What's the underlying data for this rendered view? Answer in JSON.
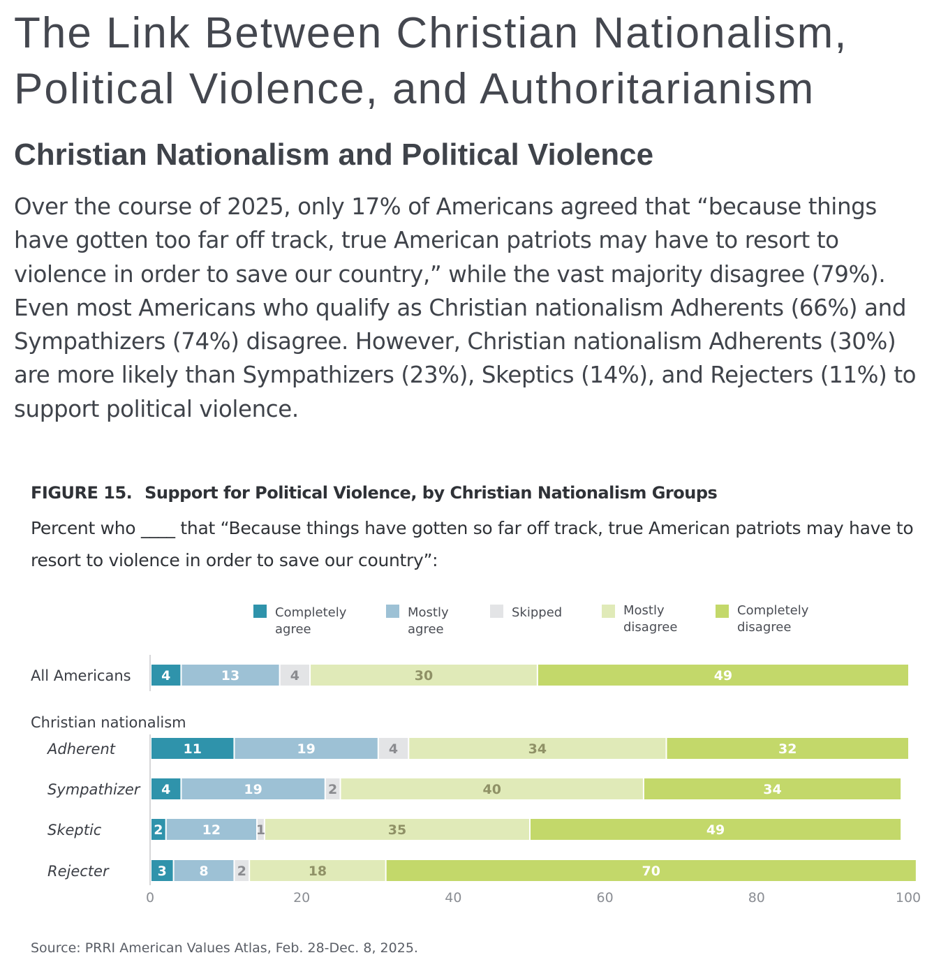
{
  "page": {
    "title_line1": "The Link Between Christian Nationalism,",
    "title_line2": "Political Violence, and Authoritarianism",
    "section_heading": "Christian Nationalism and Political Violence",
    "body": "Over the course of 2025, only 17% of Americans agreed that “because things have gotten too far off track, true American patriots may have to resort to violence in order to save our country,” while the vast majority disagree (79%). Even most Americans who qualify as Christian nationalism Adherents (66%) and Sympathizers (74%) disagree. However, Christian nationalism Adherents (30%) are more likely than Sympathizers (23%), Skeptics (14%), and Rejecters (11%) to support political violence."
  },
  "figure": {
    "number": "FIGURE 15.",
    "title": "Support for Political Violence, by Christian Nationalism Groups",
    "subtitle": "Percent who ____ that “Because things have gotten so far off track, true American patriots may have to resort to violence in order to save our country”:",
    "source": "Source: PRRI American Values Atlas, Feb. 28-Dec. 8, 2025."
  },
  "chart_data": {
    "type": "bar",
    "orientation": "horizontal",
    "stacked": true,
    "categories": [
      "All Americans",
      "Adherent",
      "Sympathizer",
      "Skeptic",
      "Rejecter"
    ],
    "group_label": "Christian nationalism",
    "series": [
      {
        "name": "Completely agree",
        "legend_lines": [
          "Completely",
          "agree"
        ],
        "color": "#2f93ab",
        "label_color": "#ffffff",
        "values": [
          4,
          11,
          4,
          2,
          3
        ]
      },
      {
        "name": "Mostly agree",
        "legend_lines": [
          "Mostly",
          "agree"
        ],
        "color": "#9dc1d5",
        "label_color": "#ffffff",
        "values": [
          13,
          19,
          19,
          12,
          8
        ]
      },
      {
        "name": "Skipped",
        "legend_lines": [
          "Skipped"
        ],
        "color": "#e3e4e6",
        "label_color": "#8a8b8f",
        "values": [
          4,
          4,
          2,
          1,
          2
        ]
      },
      {
        "name": "Mostly disagree",
        "legend_lines": [
          "Mostly",
          "disagree"
        ],
        "color": "#e0eab8",
        "label_color": "#8f9166",
        "values": [
          30,
          34,
          40,
          35,
          18
        ]
      },
      {
        "name": "Completely disagree",
        "legend_lines": [
          "Completely",
          "disagree"
        ],
        "color": "#c3d86a",
        "label_color": "#ffffff",
        "values": [
          49,
          32,
          34,
          49,
          70
        ]
      }
    ],
    "xlim": [
      0,
      100
    ],
    "xticks": [
      0,
      20,
      40,
      60,
      80,
      100
    ],
    "legend_position": "top"
  }
}
